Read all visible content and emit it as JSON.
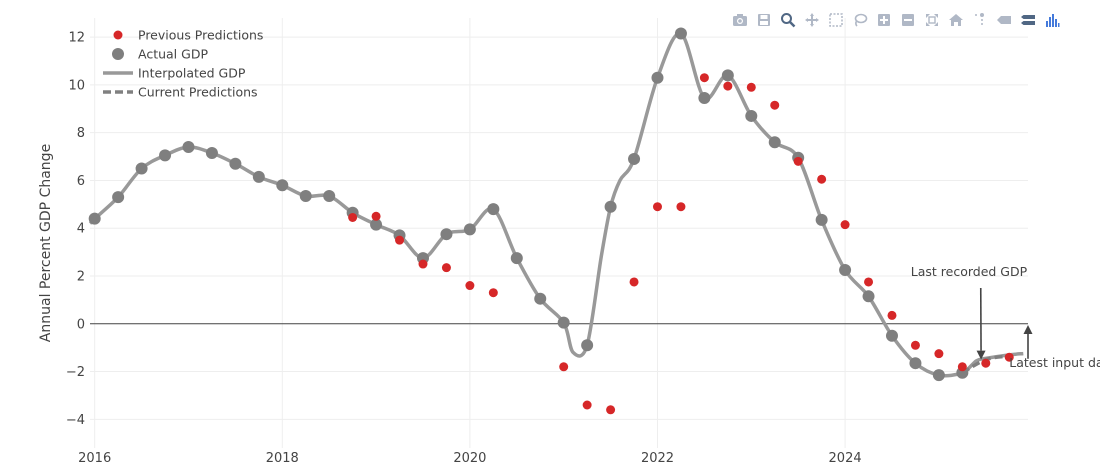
{
  "modebar": {
    "buttons": [
      "camera-icon",
      "save-icon",
      "zoom-icon",
      "pan-icon",
      "box-select-icon",
      "lasso-icon",
      "zoom-in-icon",
      "zoom-out-icon",
      "autoscale-icon",
      "home-icon",
      "spike-lines-icon",
      "hover-closest-icon",
      "hover-compare-icon",
      "plotly-logo-icon"
    ]
  },
  "colors": {
    "previous_predictions": "#d62728",
    "actual_gdp": "#7f7f7f",
    "interpolated_gdp": "#999999",
    "current_predictions": "#808080",
    "zero_line": "#444444",
    "grid": "#eeeeee",
    "modebar_icon": "#b0b8c6"
  },
  "chart_data": {
    "type": "scatter",
    "title": "",
    "xlabel": "",
    "ylabel": "Annual Percent GDP Change",
    "xlim": [
      2015.95,
      2025.95
    ],
    "ylim": [
      -5.2,
      12.8
    ],
    "xticks": [
      2016,
      2018,
      2020,
      2022,
      2024
    ],
    "xtick_labels": [
      "2016",
      "2018",
      "2020",
      "2022",
      "2024"
    ],
    "yticks": [
      -4,
      -2,
      0,
      2,
      4,
      6,
      8,
      10,
      12
    ],
    "ytick_labels": [
      "−4",
      "−2",
      "0",
      "2",
      "4",
      "6",
      "8",
      "10",
      "12"
    ],
    "grid": true,
    "legend_position": "top-left",
    "series": [
      {
        "name": "Previous Predictions",
        "mode": "markers",
        "x": [
          2018.75,
          2019.0,
          2019.25,
          2019.5,
          2019.75,
          2020.0,
          2020.25,
          2021.0,
          2021.25,
          2021.5,
          2021.75,
          2022.0,
          2022.25,
          2022.5,
          2022.75,
          2023.0,
          2023.25,
          2023.5,
          2023.75,
          2024.0,
          2024.25,
          2024.5,
          2024.75,
          2025.0,
          2025.25,
          2025.5,
          2025.75
        ],
        "y": [
          4.45,
          4.5,
          3.5,
          2.5,
          2.35,
          1.6,
          1.3,
          -1.8,
          -3.4,
          -3.6,
          1.75,
          4.9,
          4.9,
          10.3,
          9.95,
          9.9,
          9.15,
          6.8,
          6.05,
          4.15,
          1.75,
          0.35,
          -0.9,
          -1.25,
          -1.8,
          -1.65,
          -1.4
        ]
      },
      {
        "name": "Actual GDP",
        "mode": "markers",
        "x": [
          2016.0,
          2016.25,
          2016.5,
          2016.75,
          2017.0,
          2017.25,
          2017.5,
          2017.75,
          2018.0,
          2018.25,
          2018.5,
          2018.75,
          2019.0,
          2019.25,
          2019.5,
          2019.75,
          2020.0,
          2020.25,
          2020.5,
          2020.75,
          2021.0,
          2021.25,
          2021.5,
          2021.75,
          2022.0,
          2022.25,
          2022.5,
          2022.75,
          2023.0,
          2023.25,
          2023.5,
          2023.75,
          2024.0,
          2024.25,
          2024.5,
          2024.75,
          2025.0,
          2025.25
        ],
        "y": [
          4.4,
          5.3,
          6.5,
          7.05,
          7.4,
          7.15,
          6.7,
          6.15,
          5.8,
          5.35,
          5.35,
          4.65,
          4.15,
          3.7,
          2.75,
          3.75,
          3.95,
          4.8,
          2.75,
          1.05,
          0.05,
          -0.9,
          4.9,
          6.9,
          10.3,
          12.15,
          9.45,
          10.4,
          8.7,
          7.6,
          6.95,
          4.35,
          2.25,
          1.15,
          -0.5,
          -1.65,
          -2.15,
          -2.05
        ]
      },
      {
        "name": "Interpolated GDP",
        "mode": "lines",
        "x": [
          2015.95,
          2016.0,
          2016.25,
          2016.5,
          2016.75,
          2017.0,
          2017.25,
          2017.5,
          2017.75,
          2018.0,
          2018.25,
          2018.5,
          2018.75,
          2019.0,
          2019.25,
          2019.5,
          2019.75,
          2020.0,
          2020.25,
          2020.5,
          2020.75,
          2021.0,
          2021.1,
          2021.25,
          2021.4,
          2021.5,
          2021.6,
          2021.75,
          2022.0,
          2022.25,
          2022.5,
          2022.75,
          2023.0,
          2023.25,
          2023.5,
          2023.75,
          2024.0,
          2024.25,
          2024.5,
          2024.75,
          2025.0,
          2025.25,
          2025.4,
          2025.5,
          2025.75,
          2025.9
        ],
        "y": [
          4.2,
          4.4,
          5.3,
          6.5,
          7.05,
          7.4,
          7.15,
          6.7,
          6.15,
          5.8,
          5.35,
          5.35,
          4.65,
          4.15,
          3.7,
          2.75,
          3.75,
          3.95,
          4.8,
          2.75,
          1.05,
          0.05,
          -1.2,
          -0.9,
          2.8,
          4.9,
          6.0,
          6.9,
          10.3,
          12.15,
          9.45,
          10.4,
          8.7,
          7.6,
          6.95,
          4.35,
          2.25,
          1.15,
          -0.5,
          -1.65,
          -2.15,
          -2.05,
          -1.55,
          -1.45,
          -1.3,
          -1.25
        ]
      },
      {
        "name": "Current Predictions",
        "mode": "lines-dashed",
        "x": [
          2025.25,
          2025.5,
          2025.75
        ],
        "y": [
          -2.05,
          -1.5,
          -1.35
        ]
      }
    ],
    "annotations": [
      {
        "text": "Last recorded GDP",
        "x": 2024.7,
        "y": 2.0,
        "arrow_to_x": 2025.45,
        "arrow_to_y": -1.5
      },
      {
        "text": "Latest input data",
        "x": 2025.75,
        "y": -1.8,
        "arrow_to_x": 2025.95,
        "arrow_to_y": -0.05
      }
    ]
  }
}
